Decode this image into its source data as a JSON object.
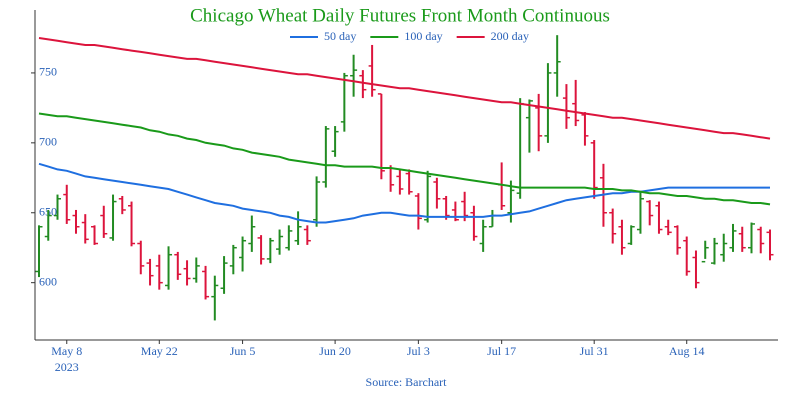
{
  "chart_data": {
    "type": "ohlc",
    "title": "Chicago Wheat Daily Futures Front Month Continuous",
    "source": "Source: Barchart",
    "categories": [
      "2023-05-03",
      "2023-05-04",
      "2023-05-05",
      "2023-05-08",
      "2023-05-09",
      "2023-05-10",
      "2023-05-11",
      "2023-05-12",
      "2023-05-15",
      "2023-05-16",
      "2023-05-17",
      "2023-05-18",
      "2023-05-19",
      "2023-05-22",
      "2023-05-23",
      "2023-05-24",
      "2023-05-25",
      "2023-05-26",
      "2023-05-30",
      "2023-05-31",
      "2023-06-01",
      "2023-06-02",
      "2023-06-05",
      "2023-06-06",
      "2023-06-07",
      "2023-06-08",
      "2023-06-09",
      "2023-06-12",
      "2023-06-13",
      "2023-06-14",
      "2023-06-15",
      "2023-06-16",
      "2023-06-20",
      "2023-06-21",
      "2023-06-22",
      "2023-06-23",
      "2023-06-26",
      "2023-06-27",
      "2023-06-28",
      "2023-06-29",
      "2023-06-30",
      "2023-07-03",
      "2023-07-05",
      "2023-07-06",
      "2023-07-07",
      "2023-07-10",
      "2023-07-11",
      "2023-07-12",
      "2023-07-13",
      "2023-07-14",
      "2023-07-17",
      "2023-07-18",
      "2023-07-19",
      "2023-07-20",
      "2023-07-21",
      "2023-07-24",
      "2023-07-25",
      "2023-07-26",
      "2023-07-27",
      "2023-07-28",
      "2023-07-31",
      "2023-08-01",
      "2023-08-02",
      "2023-08-03",
      "2023-08-04",
      "2023-08-07",
      "2023-08-08",
      "2023-08-09",
      "2023-08-10",
      "2023-08-11",
      "2023-08-14",
      "2023-08-15",
      "2023-08-16",
      "2023-08-17",
      "2023-08-18",
      "2023-08-21",
      "2023-08-22",
      "2023-08-23",
      "2023-08-24",
      "2023-08-25"
    ],
    "ohlc": {
      "open": [
        608,
        633,
        648,
        663,
        648,
        643,
        640,
        648,
        632,
        660,
        655,
        628,
        614,
        612,
        598,
        620,
        610,
        603,
        608,
        590,
        596,
        612,
        618,
        628,
        632,
        617,
        624,
        625,
        630,
        638,
        645,
        672,
        694,
        715,
        748,
        748,
        755,
        735,
        682,
        676,
        678,
        662,
        645,
        672,
        660,
        652,
        658,
        650,
        628,
        640,
        670,
        650,
        664,
        718,
        725,
        705,
        750,
        732,
        728,
        720,
        700,
        675,
        650,
        640,
        628,
        638,
        658,
        655,
        640,
        640,
        630,
        618,
        615,
        614,
        620,
        625,
        635,
        625,
        638,
        636
      ],
      "high": [
        641,
        652,
        663,
        670,
        652,
        649,
        641,
        655,
        663,
        662,
        658,
        630,
        617,
        620,
        626,
        622,
        616,
        618,
        612,
        605,
        619,
        627,
        633,
        648,
        634,
        632,
        638,
        641,
        651,
        641,
        676,
        712,
        712,
        750,
        763,
        752,
        770,
        735,
        684,
        681,
        681,
        664,
        680,
        675,
        662,
        658,
        665,
        655,
        645,
        652,
        686,
        673,
        732,
        731,
        735,
        757,
        777,
        742,
        745,
        722,
        702,
        685,
        653,
        645,
        641,
        665,
        659,
        658,
        645,
        641,
        633,
        623,
        630,
        632,
        635,
        642,
        640,
        643,
        640,
        638
      ],
      "low": [
        604,
        630,
        645,
        642,
        635,
        628,
        627,
        632,
        630,
        649,
        626,
        606,
        598,
        595,
        595,
        602,
        598,
        600,
        588,
        573,
        592,
        606,
        608,
        622,
        613,
        614,
        620,
        623,
        627,
        627,
        640,
        668,
        690,
        708,
        733,
        732,
        733,
        674,
        665,
        663,
        663,
        638,
        643,
        653,
        645,
        644,
        644,
        630,
        622,
        640,
        652,
        643,
        660,
        693,
        694,
        700,
        733,
        710,
        712,
        698,
        660,
        640,
        628,
        620,
        627,
        635,
        641,
        635,
        634,
        620,
        605,
        596,
        617,
        613,
        615,
        622,
        622,
        621,
        621,
        616
      ],
      "close": [
        640,
        648,
        660,
        645,
        640,
        631,
        628,
        635,
        658,
        652,
        628,
        612,
        605,
        600,
        620,
        606,
        603,
        612,
        590,
        598,
        614,
        625,
        630,
        640,
        617,
        630,
        633,
        637,
        640,
        630,
        672,
        710,
        708,
        748,
        752,
        738,
        738,
        680,
        670,
        667,
        665,
        646,
        676,
        660,
        648,
        645,
        648,
        633,
        640,
        648,
        655,
        666,
        728,
        730,
        705,
        750,
        758,
        718,
        716,
        705,
        668,
        650,
        635,
        625,
        640,
        660,
        648,
        638,
        636,
        625,
        608,
        600,
        625,
        628,
        628,
        637,
        625,
        642,
        628,
        620
      ]
    },
    "up_color": "#228b22",
    "down_color": "#dc143c",
    "lines": [
      {
        "name": "50 day",
        "color": "#1f6fe0",
        "values": [
          685,
          683,
          681,
          680,
          678,
          676,
          675,
          674,
          673,
          672,
          671,
          670,
          669,
          668,
          667,
          665,
          663,
          661,
          659,
          657,
          656,
          655,
          653,
          652,
          651,
          650,
          648,
          647,
          645,
          644,
          643,
          643,
          644,
          645,
          646,
          648,
          649,
          650,
          650,
          649,
          648,
          648,
          647,
          647,
          647,
          647,
          647,
          647,
          647,
          648,
          648,
          649,
          650,
          651,
          653,
          655,
          657,
          659,
          660,
          661,
          662,
          663,
          664,
          664,
          665,
          665,
          666,
          667,
          668,
          668,
          668,
          668,
          668,
          668,
          668,
          668,
          668,
          668,
          668,
          668
        ]
      },
      {
        "name": "100 day",
        "color": "#1a9a1a",
        "values": [
          721,
          720,
          719,
          719,
          718,
          717,
          716,
          715,
          714,
          713,
          712,
          711,
          709,
          708,
          706,
          705,
          703,
          702,
          700,
          699,
          698,
          696,
          695,
          693,
          692,
          691,
          690,
          688,
          687,
          686,
          685,
          684,
          684,
          683,
          683,
          683,
          683,
          682,
          682,
          681,
          680,
          679,
          678,
          677,
          676,
          675,
          674,
          673,
          672,
          671,
          670,
          669,
          668,
          668,
          668,
          668,
          668,
          668,
          668,
          668,
          667,
          667,
          667,
          666,
          666,
          665,
          664,
          664,
          663,
          662,
          662,
          661,
          660,
          660,
          659,
          659,
          658,
          657,
          657,
          656
        ]
      },
      {
        "name": "200 day",
        "color": "#dc143c",
        "values": [
          775,
          774,
          773,
          772,
          771,
          770,
          770,
          769,
          768,
          767,
          766,
          765,
          764,
          763,
          762,
          761,
          760,
          760,
          759,
          758,
          757,
          756,
          755,
          754,
          753,
          752,
          751,
          750,
          749,
          749,
          748,
          747,
          746,
          745,
          744,
          743,
          742,
          741,
          740,
          739,
          739,
          738,
          737,
          736,
          735,
          734,
          733,
          732,
          731,
          730,
          729,
          729,
          728,
          727,
          726,
          725,
          724,
          723,
          722,
          721,
          720,
          719,
          718,
          718,
          717,
          716,
          715,
          714,
          713,
          712,
          711,
          710,
          709,
          708,
          707,
          707,
          706,
          705,
          704,
          703
        ]
      }
    ],
    "legend": "top",
    "ylim": [
      559,
      795
    ],
    "yticks": [
      600,
      650,
      700,
      750
    ],
    "xticks": [
      {
        "value": "2023-05-08",
        "label": "May 8"
      },
      {
        "value": "2023-05-22",
        "label": "May 22"
      },
      {
        "value": "2023-06-05",
        "label": "Jun 5"
      },
      {
        "value": "2023-06-20",
        "label": "Jun 20"
      },
      {
        "value": "2023-07-03",
        "label": "Jul 3"
      },
      {
        "value": "2023-07-17",
        "label": "Jul 17"
      },
      {
        "value": "2023-07-31",
        "label": "Jul 31"
      },
      {
        "value": "2023-08-14",
        "label": "Aug 14"
      }
    ],
    "xtick_year": "2023"
  }
}
